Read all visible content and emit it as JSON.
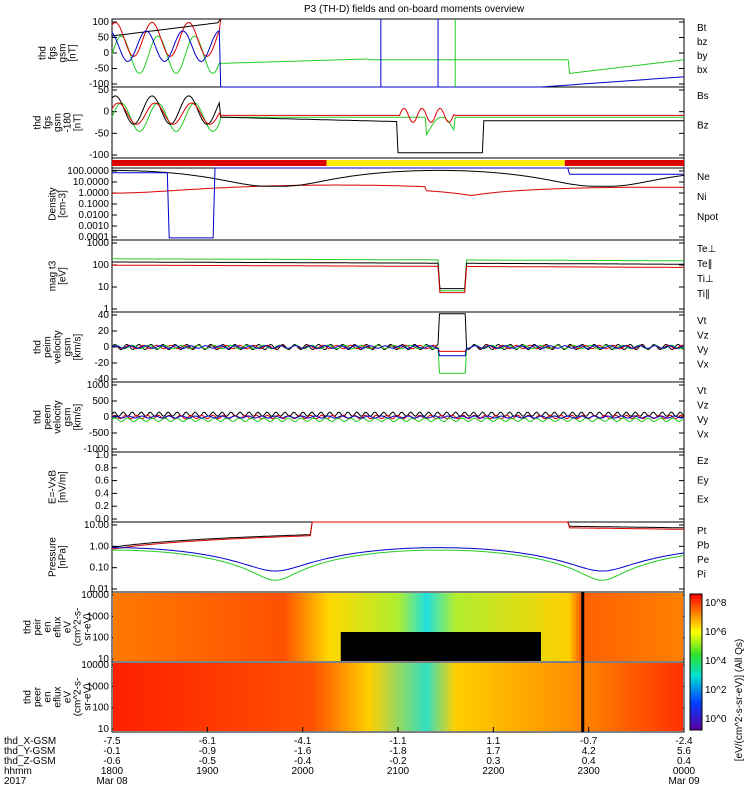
{
  "title": "P3 (TH-D) fields and on-board moments overview",
  "colors": {
    "black": "#000000",
    "red": "#dd0000",
    "green": "#22cc22",
    "blue": "#0000cc",
    "yellow": "#ffee00"
  },
  "chart_data": [
    {
      "type": "line",
      "ylabel": [
        "thd",
        "fgs",
        "gsm",
        "[nT]"
      ],
      "yticks": [
        "100",
        "50",
        "0",
        "-50",
        "-100"
      ],
      "ylim": [
        -100,
        100
      ],
      "legend": [
        {
          "label": "Bt",
          "color": "black"
        },
        {
          "label": "bz",
          "color": "red"
        },
        {
          "label": "by",
          "color": "green"
        },
        {
          "label": "bx",
          "color": "blue"
        }
      ]
    },
    {
      "type": "line",
      "ylabel": [
        "thd",
        "fgs",
        "gsm",
        "-180",
        "[nT]"
      ],
      "yticks": [
        "50",
        "0",
        "-50",
        "-100"
      ],
      "ylim": [
        -125,
        75
      ],
      "legend": [
        {
          "label": "Bs",
          "color": "green"
        },
        {
          "label": "Bz",
          "color": "black"
        }
      ]
    },
    {
      "type": "bar",
      "ylabel": [],
      "yticks": [],
      "legend": [],
      "mode_bar": [
        {
          "start": "1800",
          "end": "2015",
          "color": "red"
        },
        {
          "start": "2015",
          "end": "2245",
          "color": "yellow"
        },
        {
          "start": "2245",
          "end": "0000",
          "color": "red"
        }
      ]
    },
    {
      "type": "line",
      "ylabel": [
        "Density",
        "[cm-3]"
      ],
      "yticks": [
        "100.0000",
        "10.0000",
        "1.0000",
        "0.1000",
        "0.0100",
        "0.0010",
        "0.0001"
      ],
      "ylim": [
        0.0001,
        100
      ],
      "scale": "log",
      "legend": [
        {
          "label": "Ne",
          "color": "red"
        },
        {
          "label": "Ni",
          "color": "black"
        },
        {
          "label": "Npot",
          "color": "blue"
        }
      ]
    },
    {
      "type": "line",
      "ylabel": [
        "mag t3",
        "[eV]"
      ],
      "yticks": [
        "1000",
        "100",
        "10",
        "1"
      ],
      "ylim": [
        1,
        10000
      ],
      "scale": "log",
      "legend": [
        {
          "label": "Te⊥",
          "color": "red"
        },
        {
          "label": "Te∥",
          "color": "black"
        },
        {
          "label": "Ti⊥",
          "color": "red"
        },
        {
          "label": "Ti∥",
          "color": "green"
        }
      ]
    },
    {
      "type": "line",
      "ylabel": [
        "thd",
        "peim",
        "velocity",
        "gsm",
        "[km/s]"
      ],
      "yticks": [
        "40",
        "20",
        "0",
        "-20",
        "-40"
      ],
      "ylim": [
        -40,
        40
      ],
      "legend": [
        {
          "label": "Vt",
          "color": "black"
        },
        {
          "label": "Vz",
          "color": "red"
        },
        {
          "label": "Vy",
          "color": "green"
        },
        {
          "label": "Vx",
          "color": "blue"
        }
      ]
    },
    {
      "type": "line",
      "ylabel": [
        "thd",
        "peem",
        "velocity",
        "gsm",
        "[km/s]"
      ],
      "yticks": [
        "1000",
        "500",
        "0",
        "-500",
        "-1000"
      ],
      "ylim": [
        -1000,
        1000
      ],
      "legend": [
        {
          "label": "Vt",
          "color": "black"
        },
        {
          "label": "Vz",
          "color": "red"
        },
        {
          "label": "Vy",
          "color": "green"
        },
        {
          "label": "Vx",
          "color": "blue"
        }
      ]
    },
    {
      "type": "line",
      "ylabel": [
        "E=-VxB",
        "[mV/m]"
      ],
      "yticks": [
        "1.0",
        "0.8",
        "0.6",
        "0.4",
        "0.2",
        "0.0"
      ],
      "ylim": [
        0,
        1
      ],
      "legend": [
        {
          "label": "Ez",
          "color": "red"
        },
        {
          "label": "Ey",
          "color": "green"
        },
        {
          "label": "Ex",
          "color": "blue"
        }
      ]
    },
    {
      "type": "line",
      "ylabel": [
        "Pressure",
        "[nPa]"
      ],
      "yticks": [
        "10.00",
        "1.00",
        "0.10",
        "0.01"
      ],
      "ylim": [
        0.005,
        20
      ],
      "scale": "log",
      "legend": [
        {
          "label": "Pt",
          "color": "black"
        },
        {
          "label": "Pb",
          "color": "red"
        },
        {
          "label": "Pe",
          "color": "green"
        },
        {
          "label": "Pi",
          "color": "blue"
        }
      ]
    },
    {
      "type": "heatmap",
      "ylabel": [
        "thd",
        "peir",
        "en",
        "eflux",
        "eV",
        "(cm^2-s-",
        "sr-eV)"
      ],
      "yticks": [
        "10000",
        "1000",
        "100",
        "10"
      ],
      "ylim": [
        5,
        20000
      ],
      "scale": "log",
      "legend": []
    },
    {
      "type": "heatmap",
      "ylabel": [
        "thd",
        "peer",
        "en",
        "eflux",
        "eV",
        "(cm^2-s-",
        "sr-eV)"
      ],
      "yticks": [
        "10000",
        "1000",
        "100",
        "10"
      ],
      "ylim": [
        5,
        20000
      ],
      "scale": "log",
      "legend": []
    }
  ],
  "colorbar": {
    "ticks": [
      "10^8",
      "10^6",
      "10^4",
      "10^2",
      "10^0"
    ],
    "label": "[eV/(cm^2-s-sr-eV)] (All Qs)"
  },
  "x_axis": {
    "row_labels": [
      "thd_X-GSM",
      "thd_Y-GSM",
      "thd_Z-GSM",
      "hhmm",
      "2017"
    ],
    "columns": [
      {
        "values": [
          "-7.5",
          "-0.1",
          "-0.6",
          "1800",
          "Mar 08"
        ]
      },
      {
        "values": [
          "-6.1",
          "-0.9",
          "-0.5",
          "1900",
          ""
        ]
      },
      {
        "values": [
          "-4.1",
          "-1.6",
          "-0.4",
          "2000",
          ""
        ]
      },
      {
        "values": [
          "-1.1",
          "-1.8",
          "-0.2",
          "2100",
          ""
        ]
      },
      {
        "values": [
          "1.1",
          "1.7",
          "0.3",
          "2200",
          ""
        ]
      },
      {
        "values": [
          "-0.7",
          "4.2",
          "0.4",
          "2300",
          ""
        ]
      },
      {
        "values": [
          "-2.4",
          "5.6",
          "0.4",
          "0000",
          "Mar 09"
        ]
      }
    ]
  }
}
